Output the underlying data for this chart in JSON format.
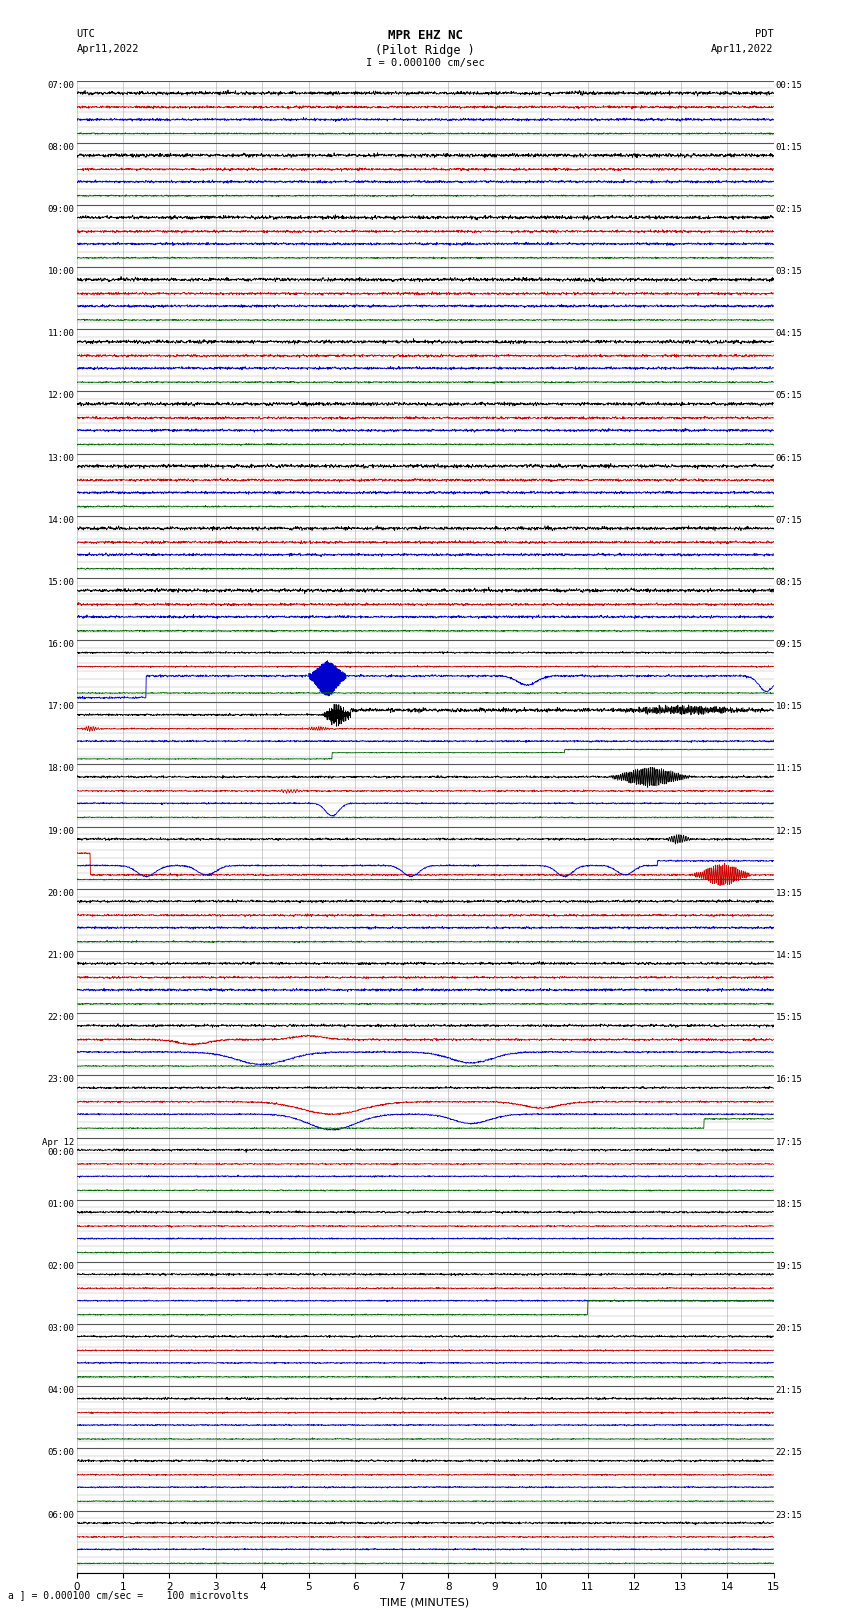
{
  "title_line1": "MPR EHZ NC",
  "title_line2": "(Pilot Ridge )",
  "title_line3": "I = 0.000100 cm/sec",
  "left_label_top": "UTC",
  "left_label_date": "Apr11,2022",
  "right_label_top": "PDT",
  "right_label_date": "Apr11,2022",
  "xlabel": "TIME (MINUTES)",
  "footer": "a ] = 0.000100 cm/sec =    100 microvolts",
  "bg_color": "#ffffff",
  "grid_color_major": "#555555",
  "grid_color_minor": "#aaaaaa",
  "n_rows": 24,
  "x_min": 0,
  "x_max": 15,
  "left_times": [
    "07:00",
    "08:00",
    "09:00",
    "10:00",
    "11:00",
    "12:00",
    "13:00",
    "14:00",
    "15:00",
    "16:00",
    "17:00",
    "18:00",
    "19:00",
    "20:00",
    "21:00",
    "22:00",
    "23:00",
    "Apr 12\n00:00",
    "01:00",
    "02:00",
    "03:00",
    "04:00",
    "05:00",
    "06:00"
  ],
  "right_times": [
    "00:15",
    "01:15",
    "02:15",
    "03:15",
    "04:15",
    "05:15",
    "06:15",
    "07:15",
    "08:15",
    "09:15",
    "10:15",
    "11:15",
    "12:15",
    "13:15",
    "14:15",
    "15:15",
    "16:15",
    "17:15",
    "18:15",
    "19:15",
    "20:15",
    "21:15",
    "22:15",
    "23:15"
  ],
  "black": "#000000",
  "blue": "#0000cc",
  "red": "#cc0000",
  "green": "#006600"
}
